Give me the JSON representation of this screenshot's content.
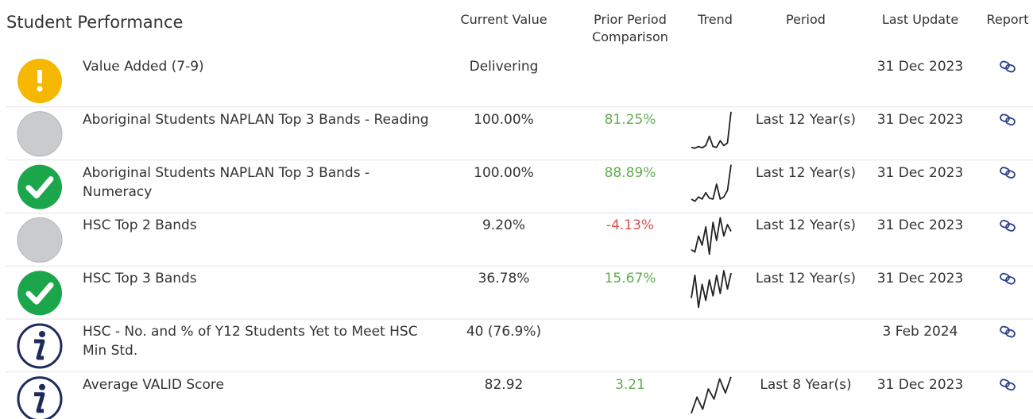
{
  "header": {
    "title": "Student Performance",
    "columns": [
      "Current Value",
      "Prior Period Comparison",
      "Trend",
      "Period",
      "Last Update",
      "Report"
    ]
  },
  "rows": [
    {
      "icon": "warning",
      "name": "Value Added (7-9)",
      "current": "Delivering",
      "updated": "31 Dec 2023"
    },
    {
      "icon": "none",
      "name": "Aboriginal Students NAPLAN Top 3 Bands - Reading",
      "current": "100.00%",
      "prior": "81.25%",
      "prior_color": "#5fae4e",
      "trend": [
        20,
        18,
        22,
        19,
        24,
        45,
        22,
        20,
        35,
        24,
        30,
        100
      ],
      "period": "Last 12 Year(s)",
      "updated": "31 Dec 2023"
    },
    {
      "icon": "check",
      "name": "Aboriginal Students NAPLAN Top 3 Bands - Numeracy",
      "current": "100.00%",
      "prior": "88.89%",
      "prior_color": "#5fae4e",
      "trend": [
        20,
        15,
        25,
        20,
        35,
        22,
        20,
        55,
        20,
        25,
        40,
        100
      ],
      "period": "Last 12 Year(s)",
      "updated": "31 Dec 2023"
    },
    {
      "icon": "none",
      "name": "HSC Top 2 Bands",
      "current": "9.20%",
      "prior": "-4.13%",
      "prior_color": "#d9534f",
      "trend": [
        30,
        25,
        60,
        40,
        80,
        20,
        90,
        50,
        100,
        60,
        85,
        70
      ],
      "period": "Last 12 Year(s)",
      "updated": "31 Dec 2023"
    },
    {
      "icon": "check",
      "name": "HSC Top 3 Bands",
      "current": "36.78%",
      "prior": "15.67%",
      "prior_color": "#5fae4e",
      "trend": [
        40,
        90,
        20,
        70,
        35,
        80,
        45,
        90,
        50,
        100,
        60,
        95
      ],
      "period": "Last 12 Year(s)",
      "updated": "31 Dec 2023"
    },
    {
      "icon": "info",
      "name": "HSC - No. and % of Y12 Students Yet to Meet HSC Min Std.",
      "current": "40 (76.9%)",
      "updated": "3 Feb 2024"
    },
    {
      "icon": "info",
      "name": "Average VALID Score",
      "current": "82.92",
      "prior": "3.21",
      "prior_color": "#5fae4e",
      "trend": [
        10,
        50,
        20,
        70,
        45,
        95,
        60,
        100
      ],
      "period": "Last 8 Year(s)",
      "updated": "31 Dec 2023"
    }
  ]
}
